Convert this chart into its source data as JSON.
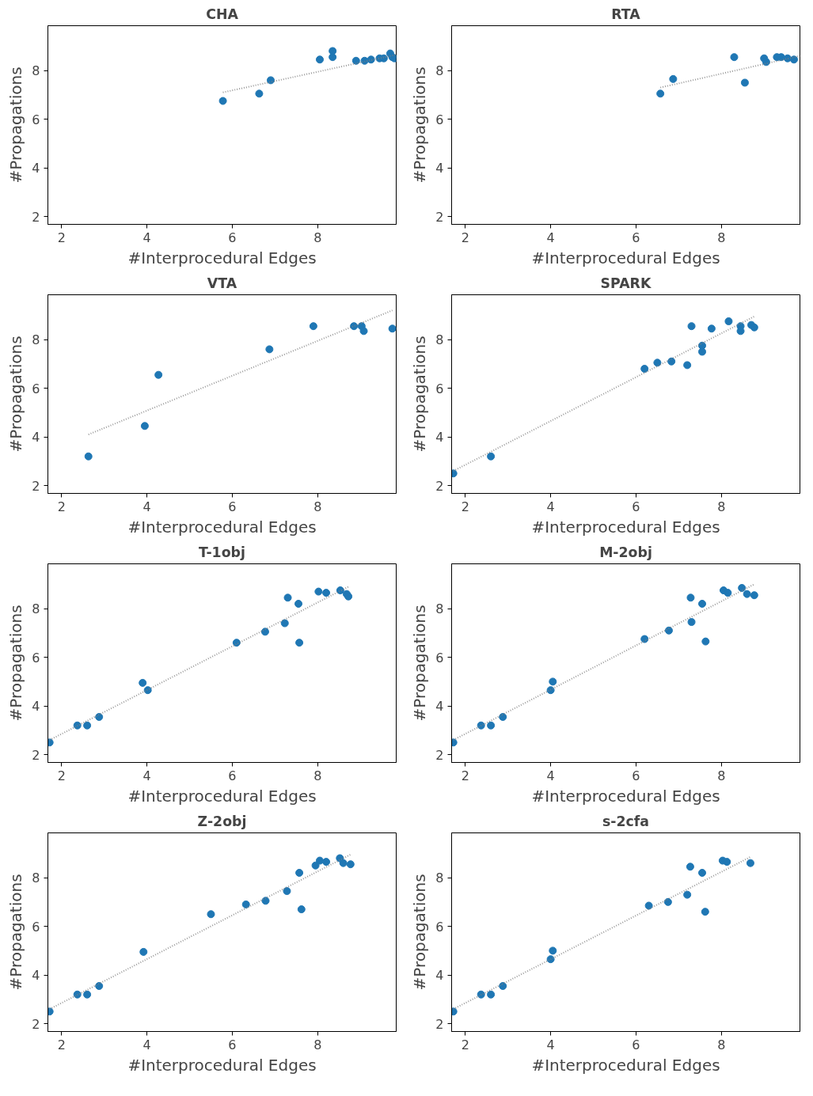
{
  "chart_data": [
    {
      "type": "scatter",
      "title": "CHA",
      "xlabel": "#Interprocedural Edges",
      "ylabel": "#Propagations",
      "xlim": [
        1.68,
        9.84
      ],
      "ylim": [
        1.68,
        9.84
      ],
      "xticks": [
        2,
        4,
        6,
        8
      ],
      "yticks": [
        2,
        4,
        6,
        8
      ],
      "grid": false,
      "marker": "circle",
      "series": [
        {
          "color": "#1f77b4",
          "x": [
            5.78,
            6.63,
            6.9,
            8.05,
            8.35,
            8.35,
            8.9,
            9.1,
            9.25,
            9.45,
            9.55,
            9.7,
            9.75,
            9.8
          ],
          "values": [
            6.75,
            7.05,
            7.6,
            8.45,
            8.55,
            8.8,
            8.4,
            8.4,
            8.45,
            8.5,
            8.5,
            8.7,
            8.55,
            8.5
          ]
        },
        {
          "type": "line",
          "marker": "none",
          "line_style": "dotted",
          "color": "#808080",
          "x": [
            5.78,
            9.84
          ],
          "values": [
            7.1,
            8.65
          ]
        }
      ]
    },
    {
      "type": "scatter",
      "title": "RTA",
      "xlabel": "#Interprocedural Edges",
      "ylabel": "#Propagations",
      "xlim": [
        1.68,
        9.84
      ],
      "ylim": [
        1.68,
        9.84
      ],
      "xticks": [
        2,
        4,
        6,
        8
      ],
      "yticks": [
        2,
        4,
        6,
        8
      ],
      "grid": false,
      "marker": "circle",
      "series": [
        {
          "color": "#1f77b4",
          "x": [
            6.57,
            6.87,
            8.3,
            8.55,
            9.0,
            9.05,
            9.3,
            9.4,
            9.55,
            9.7
          ],
          "values": [
            7.05,
            7.65,
            8.55,
            7.5,
            8.5,
            8.35,
            8.55,
            8.55,
            8.5,
            8.45
          ]
        },
        {
          "type": "line",
          "marker": "none",
          "line_style": "dotted",
          "color": "#808080",
          "x": [
            6.57,
            9.84
          ],
          "values": [
            7.3,
            8.6
          ]
        }
      ]
    },
    {
      "type": "scatter",
      "title": "VTA",
      "xlabel": "#Interprocedural Edges",
      "ylabel": "#Propagations",
      "xlim": [
        1.68,
        9.84
      ],
      "ylim": [
        1.68,
        9.84
      ],
      "xticks": [
        2,
        4,
        6,
        8
      ],
      "yticks": [
        2,
        4,
        6,
        8
      ],
      "grid": false,
      "marker": "circle",
      "series": [
        {
          "color": "#1f77b4",
          "x": [
            2.63,
            3.95,
            4.27,
            6.87,
            7.9,
            8.85,
            9.03,
            9.08,
            9.75
          ],
          "values": [
            3.2,
            4.45,
            6.55,
            7.6,
            8.55,
            8.55,
            8.55,
            8.35,
            8.45
          ]
        },
        {
          "type": "line",
          "marker": "none",
          "line_style": "dotted",
          "color": "#808080",
          "x": [
            2.63,
            9.75
          ],
          "values": [
            4.1,
            9.2
          ]
        }
      ]
    },
    {
      "type": "scatter",
      "title": "SPARK",
      "xlabel": "#Interprocedural Edges",
      "ylabel": "#Propagations",
      "xlim": [
        1.68,
        9.84
      ],
      "ylim": [
        1.68,
        9.84
      ],
      "xticks": [
        2,
        4,
        6,
        8
      ],
      "yticks": [
        2,
        4,
        6,
        8
      ],
      "grid": false,
      "marker": "circle",
      "series": [
        {
          "color": "#1f77b4",
          "x": [
            1.72,
            2.6,
            6.2,
            6.5,
            6.83,
            7.2,
            7.3,
            7.55,
            7.55,
            7.77,
            8.17,
            8.45,
            8.45,
            8.7,
            8.77
          ],
          "values": [
            2.5,
            3.2,
            6.8,
            7.05,
            7.1,
            6.95,
            8.55,
            7.75,
            7.5,
            8.45,
            8.75,
            8.55,
            8.35,
            8.6,
            8.5
          ]
        },
        {
          "type": "line",
          "marker": "none",
          "line_style": "dotted",
          "color": "#808080",
          "x": [
            1.72,
            8.77
          ],
          "values": [
            2.6,
            8.95
          ]
        }
      ]
    },
    {
      "type": "scatter",
      "title": "T-1obj",
      "xlabel": "#Interprocedural Edges",
      "ylabel": "#Propagations",
      "xlim": [
        1.68,
        9.84
      ],
      "ylim": [
        1.68,
        9.84
      ],
      "xticks": [
        2,
        4,
        6,
        8
      ],
      "yticks": [
        2,
        4,
        6,
        8
      ],
      "grid": false,
      "marker": "circle",
      "series": [
        {
          "color": "#1f77b4",
          "x": [
            1.72,
            2.37,
            2.6,
            2.88,
            3.9,
            4.02,
            6.1,
            6.77,
            7.23,
            7.3,
            7.55,
            7.57,
            8.02,
            8.2,
            8.53,
            8.68,
            8.72
          ],
          "values": [
            2.5,
            3.2,
            3.2,
            3.55,
            4.95,
            4.65,
            6.6,
            7.05,
            7.4,
            8.45,
            8.2,
            6.6,
            8.7,
            8.65,
            8.75,
            8.6,
            8.5
          ]
        },
        {
          "type": "line",
          "marker": "none",
          "line_style": "dotted",
          "color": "#808080",
          "x": [
            1.72,
            8.72
          ],
          "values": [
            2.6,
            8.9
          ]
        }
      ]
    },
    {
      "type": "scatter",
      "title": "M-2obj",
      "xlabel": "#Interprocedural Edges",
      "ylabel": "#Propagations",
      "xlim": [
        1.68,
        9.84
      ],
      "ylim": [
        1.68,
        9.84
      ],
      "xticks": [
        2,
        4,
        6,
        8
      ],
      "yticks": [
        2,
        4,
        6,
        8
      ],
      "grid": false,
      "marker": "circle",
      "series": [
        {
          "color": "#1f77b4",
          "x": [
            1.72,
            2.37,
            2.6,
            2.88,
            4.0,
            4.05,
            6.2,
            6.77,
            7.28,
            7.3,
            7.55,
            7.63,
            8.05,
            8.15,
            8.48,
            8.6,
            8.77
          ],
          "values": [
            2.5,
            3.2,
            3.2,
            3.55,
            4.65,
            5.0,
            6.75,
            7.1,
            8.45,
            7.45,
            8.2,
            6.65,
            8.75,
            8.65,
            8.85,
            8.6,
            8.55
          ]
        },
        {
          "type": "line",
          "marker": "none",
          "line_style": "dotted",
          "color": "#808080",
          "x": [
            1.72,
            8.77
          ],
          "values": [
            2.6,
            9.0
          ]
        }
      ]
    },
    {
      "type": "scatter",
      "title": "Z-2obj",
      "xlabel": "#Interprocedural Edges",
      "ylabel": "#Propagations",
      "xlim": [
        1.68,
        9.84
      ],
      "ylim": [
        1.68,
        9.84
      ],
      "xticks": [
        2,
        4,
        6,
        8
      ],
      "yticks": [
        2,
        4,
        6,
        8
      ],
      "grid": false,
      "marker": "circle",
      "series": [
        {
          "color": "#1f77b4",
          "x": [
            1.72,
            2.37,
            2.6,
            2.88,
            3.92,
            5.5,
            6.32,
            6.78,
            7.28,
            7.57,
            7.62,
            7.95,
            8.05,
            8.2,
            8.52,
            8.6,
            8.77
          ],
          "values": [
            2.5,
            3.2,
            3.2,
            3.55,
            4.95,
            6.5,
            6.9,
            7.05,
            7.45,
            8.2,
            6.7,
            8.5,
            8.7,
            8.65,
            8.8,
            8.6,
            8.55
          ]
        },
        {
          "type": "line",
          "marker": "none",
          "line_style": "dotted",
          "color": "#808080",
          "x": [
            1.72,
            8.77
          ],
          "values": [
            2.6,
            8.95
          ]
        }
      ]
    },
    {
      "type": "scatter",
      "title": "s-2cfa",
      "xlabel": "#Interprocedural Edges",
      "ylabel": "#Propagations",
      "xlim": [
        1.68,
        9.84
      ],
      "ylim": [
        1.68,
        9.84
      ],
      "xticks": [
        2,
        4,
        6,
        8
      ],
      "yticks": [
        2,
        4,
        6,
        8
      ],
      "grid": false,
      "marker": "circle",
      "series": [
        {
          "color": "#1f77b4",
          "x": [
            1.72,
            2.37,
            2.6,
            2.88,
            4.0,
            4.05,
            6.3,
            6.75,
            7.2,
            7.27,
            7.55,
            7.62,
            8.03,
            8.13,
            8.68
          ],
          "values": [
            2.5,
            3.2,
            3.2,
            3.55,
            4.65,
            5.0,
            6.85,
            7.0,
            7.3,
            8.45,
            8.2,
            6.6,
            8.7,
            8.65,
            8.6
          ]
        },
        {
          "type": "line",
          "marker": "none",
          "line_style": "dotted",
          "color": "#808080",
          "x": [
            1.72,
            8.68
          ],
          "values": [
            2.6,
            8.85
          ]
        }
      ]
    }
  ]
}
